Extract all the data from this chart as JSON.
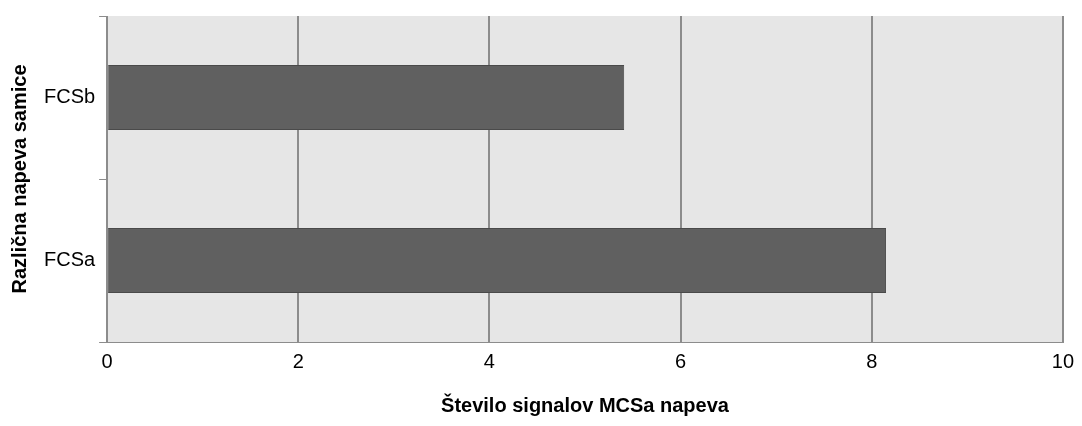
{
  "chart_data": {
    "type": "bar",
    "orientation": "horizontal",
    "xlabel": "Število signalov MCSa napeva",
    "ylabel": "Različna napeva samice",
    "categories": [
      "FCSb",
      "FCSa"
    ],
    "values": [
      5.41,
      8.15
    ],
    "color": "#606060",
    "xlim": [
      0,
      10
    ],
    "xticks": [
      0,
      2,
      4,
      6,
      8,
      10
    ],
    "grid": "x",
    "legend": false
  }
}
